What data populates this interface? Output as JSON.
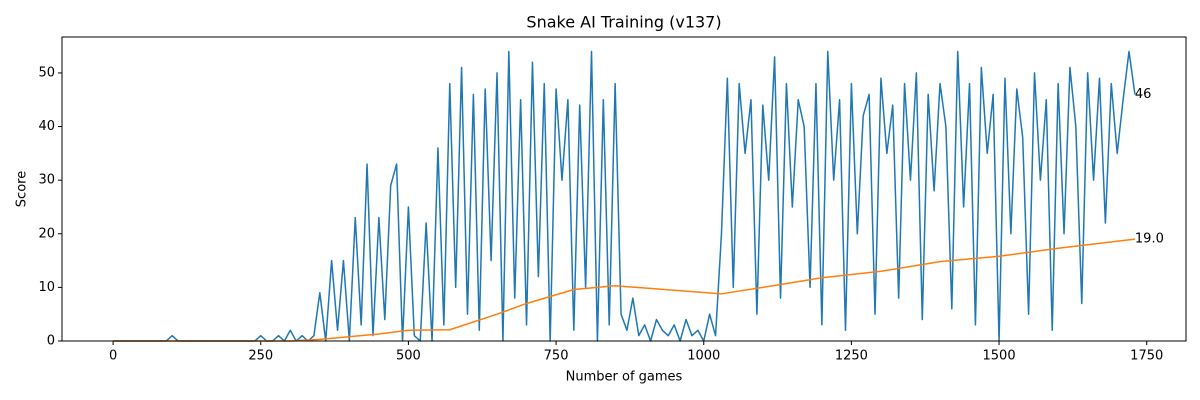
{
  "chart_data": {
    "type": "line",
    "title": "Snake AI Training (v137)",
    "xlabel": "Number of games",
    "ylabel": "Score",
    "xlim": [
      -86.5,
      1816.5
    ],
    "ylim": [
      0,
      56.7
    ],
    "xticks": [
      0,
      250,
      500,
      750,
      1000,
      1250,
      1500,
      1750
    ],
    "yticks": [
      0,
      10,
      20,
      30,
      40,
      50
    ],
    "grid": false,
    "series": [
      {
        "color": "#1f77b4",
        "x": [
          0,
          10,
          20,
          30,
          40,
          50,
          60,
          70,
          80,
          90,
          100,
          110,
          120,
          130,
          140,
          150,
          160,
          170,
          180,
          190,
          200,
          210,
          220,
          230,
          240,
          250,
          260,
          270,
          280,
          290,
          300,
          310,
          320,
          330,
          340,
          350,
          360,
          370,
          380,
          390,
          400,
          410,
          420,
          430,
          440,
          450,
          460,
          470,
          480,
          490,
          500,
          510,
          520,
          530,
          540,
          550,
          560,
          570,
          580,
          590,
          600,
          610,
          620,
          630,
          640,
          650,
          660,
          670,
          680,
          690,
          700,
          710,
          720,
          730,
          740,
          750,
          760,
          770,
          780,
          790,
          800,
          810,
          820,
          830,
          840,
          850,
          860,
          870,
          880,
          890,
          900,
          910,
          920,
          930,
          940,
          950,
          960,
          970,
          980,
          990,
          1000,
          1010,
          1020,
          1030,
          1040,
          1050,
          1060,
          1070,
          1080,
          1090,
          1100,
          1110,
          1120,
          1130,
          1140,
          1150,
          1160,
          1170,
          1180,
          1190,
          1200,
          1210,
          1220,
          1230,
          1240,
          1250,
          1260,
          1270,
          1280,
          1290,
          1300,
          1310,
          1320,
          1330,
          1340,
          1350,
          1360,
          1370,
          1380,
          1390,
          1400,
          1410,
          1420,
          1430,
          1440,
          1450,
          1460,
          1470,
          1480,
          1490,
          1500,
          1510,
          1520,
          1530,
          1540,
          1550,
          1560,
          1570,
          1580,
          1590,
          1600,
          1610,
          1620,
          1630,
          1640,
          1650,
          1660,
          1670,
          1680,
          1690,
          1700,
          1710,
          1720,
          1730
        ],
        "values": [
          0,
          0,
          0,
          0,
          0,
          0,
          0,
          0,
          0,
          0,
          1,
          0,
          0,
          0,
          0,
          0,
          0,
          0,
          0,
          0,
          0,
          0,
          0,
          0,
          0,
          1,
          0,
          0,
          1,
          0,
          2,
          0,
          1,
          0,
          1,
          9,
          0,
          15,
          2,
          15,
          0,
          23,
          3,
          33,
          1,
          23,
          4,
          29,
          33,
          0,
          25,
          1,
          0,
          22,
          0,
          36,
          3,
          48,
          10,
          51,
          5,
          46,
          2,
          47,
          15,
          50,
          0,
          54,
          8,
          45,
          3,
          52,
          12,
          48,
          0,
          47,
          30,
          45,
          2,
          44,
          10,
          54,
          0,
          45,
          3,
          48,
          5,
          2,
          8,
          1,
          3,
          0,
          4,
          2,
          1,
          3,
          0,
          4,
          1,
          2,
          0,
          5,
          1,
          20,
          49,
          10,
          48,
          35,
          45,
          5,
          44,
          30,
          53,
          8,
          48,
          25,
          45,
          40,
          10,
          48,
          3,
          54,
          30,
          45,
          2,
          48,
          20,
          42,
          46,
          5,
          49,
          35,
          44,
          8,
          48,
          30,
          50,
          4,
          46,
          28,
          48,
          40,
          6,
          54,
          25,
          48,
          3,
          51,
          35,
          46,
          0,
          49,
          20,
          47,
          38,
          5,
          50,
          30,
          45,
          2,
          48,
          20,
          51,
          40,
          7,
          50,
          30,
          49,
          22,
          48,
          35,
          45,
          54,
          46
        ]
      },
      {
        "color": "#ff7f0e",
        "x": [
          0,
          300,
          350,
          450,
          500,
          570,
          650,
          700,
          780,
          850,
          1030,
          1100,
          1200,
          1300,
          1400,
          1500,
          1600,
          1730
        ],
        "values": [
          0,
          0,
          0.3,
          1.3,
          2,
          2.1,
          5,
          7,
          9.6,
          10.3,
          8.8,
          10,
          11.8,
          13,
          14.8,
          15.8,
          17.3,
          19.0
        ]
      }
    ],
    "annotations": [
      {
        "text": "46",
        "x": 1730,
        "y": 46
      },
      {
        "text": "19.0",
        "x": 1730,
        "y": 19.0
      }
    ]
  }
}
